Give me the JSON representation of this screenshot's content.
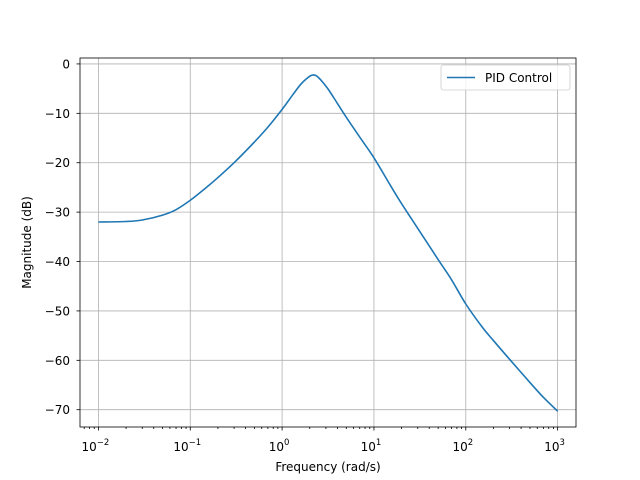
{
  "chart_data": {
    "type": "line",
    "title": "",
    "xlabel": "Frequency (rad/s)",
    "ylabel": "Magnitude (dB)",
    "xscale": "log",
    "xlim": [
      0.0063,
      1585
    ],
    "ylim": [
      -73.5,
      1.2
    ],
    "grid": true,
    "legend_position": "top-right",
    "x_ticks": [
      {
        "value": 0.01,
        "base": "10",
        "exp": "−2"
      },
      {
        "value": 0.1,
        "base": "10",
        "exp": "−1"
      },
      {
        "value": 1,
        "base": "10",
        "exp": "0"
      },
      {
        "value": 10,
        "base": "10",
        "exp": "1"
      },
      {
        "value": 100,
        "base": "10",
        "exp": "2"
      },
      {
        "value": 1000,
        "base": "10",
        "exp": "3"
      }
    ],
    "y_ticks": [
      {
        "value": 0,
        "label": "0"
      },
      {
        "value": -10,
        "label": "−10"
      },
      {
        "value": -20,
        "label": "−20"
      },
      {
        "value": -30,
        "label": "−30"
      },
      {
        "value": -40,
        "label": "−40"
      },
      {
        "value": -50,
        "label": "−50"
      },
      {
        "value": -60,
        "label": "−60"
      },
      {
        "value": -70,
        "label": "−70"
      }
    ],
    "series": [
      {
        "name": "PID Control",
        "color": "#1f77b4",
        "x": [
          0.01,
          0.02,
          0.03,
          0.05,
          0.07,
          0.1,
          0.15,
          0.2,
          0.3,
          0.5,
          0.7,
          1.0,
          1.3,
          1.6,
          1.9,
          2.1,
          2.3,
          2.5,
          2.8,
          3.2,
          4.0,
          5.0,
          7.0,
          10,
          15,
          20,
          30,
          50,
          70,
          100,
          150,
          200,
          300,
          500,
          700,
          1000
        ],
        "y": [
          -32.0,
          -31.9,
          -31.6,
          -30.6,
          -29.5,
          -27.6,
          -25.0,
          -23.0,
          -20.0,
          -15.8,
          -12.8,
          -9.2,
          -6.3,
          -4.1,
          -2.8,
          -2.3,
          -2.3,
          -2.8,
          -3.8,
          -5.2,
          -8.0,
          -10.8,
          -14.8,
          -19.0,
          -24.5,
          -28.3,
          -33.3,
          -39.6,
          -43.7,
          -48.6,
          -53.2,
          -56.0,
          -59.8,
          -64.5,
          -67.5,
          -70.3
        ]
      }
    ]
  }
}
